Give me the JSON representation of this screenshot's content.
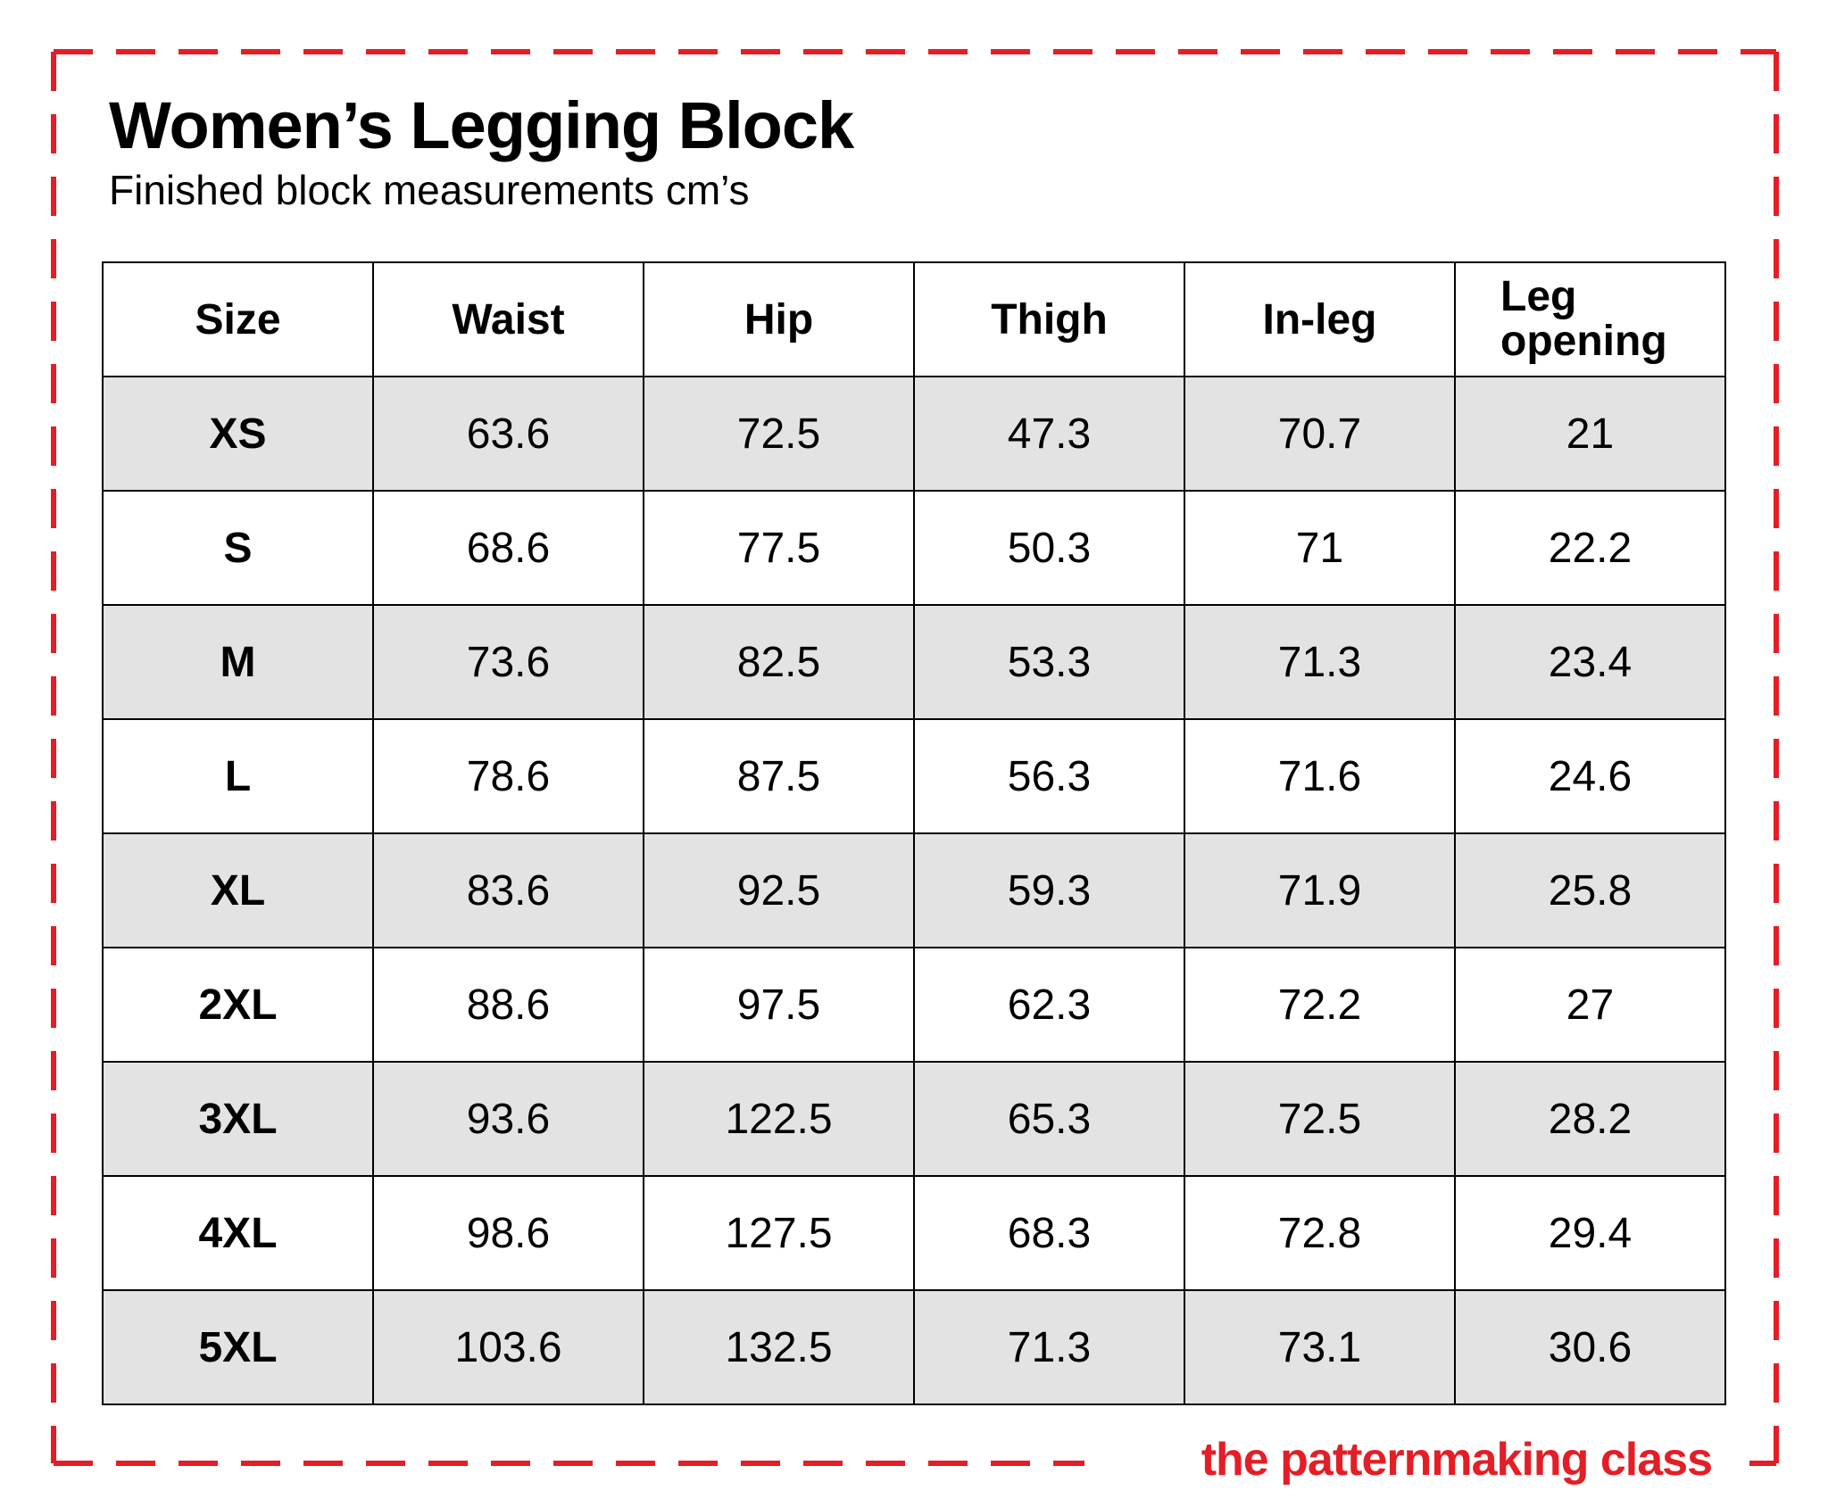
{
  "header": {
    "title": "Women’s Legging Block",
    "subtitle": "Finished block measurements cm’s"
  },
  "table": {
    "columns": [
      "Size",
      "Waist",
      "Hip",
      "Thigh",
      "In-leg",
      "Leg opening"
    ],
    "rows": [
      [
        "XS",
        "63.6",
        "72.5",
        "47.3",
        "70.7",
        "21"
      ],
      [
        "S",
        "68.6",
        "77.5",
        "50.3",
        "71",
        "22.2"
      ],
      [
        "M",
        "73.6",
        "82.5",
        "53.3",
        "71.3",
        "23.4"
      ],
      [
        "L",
        "78.6",
        "87.5",
        "56.3",
        "71.6",
        "24.6"
      ],
      [
        "XL",
        "83.6",
        "92.5",
        "59.3",
        "71.9",
        "25.8"
      ],
      [
        "2XL",
        "88.6",
        "97.5",
        "62.3",
        "72.2",
        "27"
      ],
      [
        "3XL",
        "93.6",
        "122.5",
        "65.3",
        "72.5",
        "28.2"
      ],
      [
        "4XL",
        "98.6",
        "127.5",
        "68.3",
        "72.8",
        "29.4"
      ],
      [
        "5XL",
        "103.6",
        "132.5",
        "71.3",
        "73.1",
        "30.6"
      ]
    ]
  },
  "footer": {
    "brand": "the patternmaking class"
  },
  "colors": {
    "accent": "#e41e26",
    "row_shade": "#e3e3e3",
    "text": "#000000"
  }
}
